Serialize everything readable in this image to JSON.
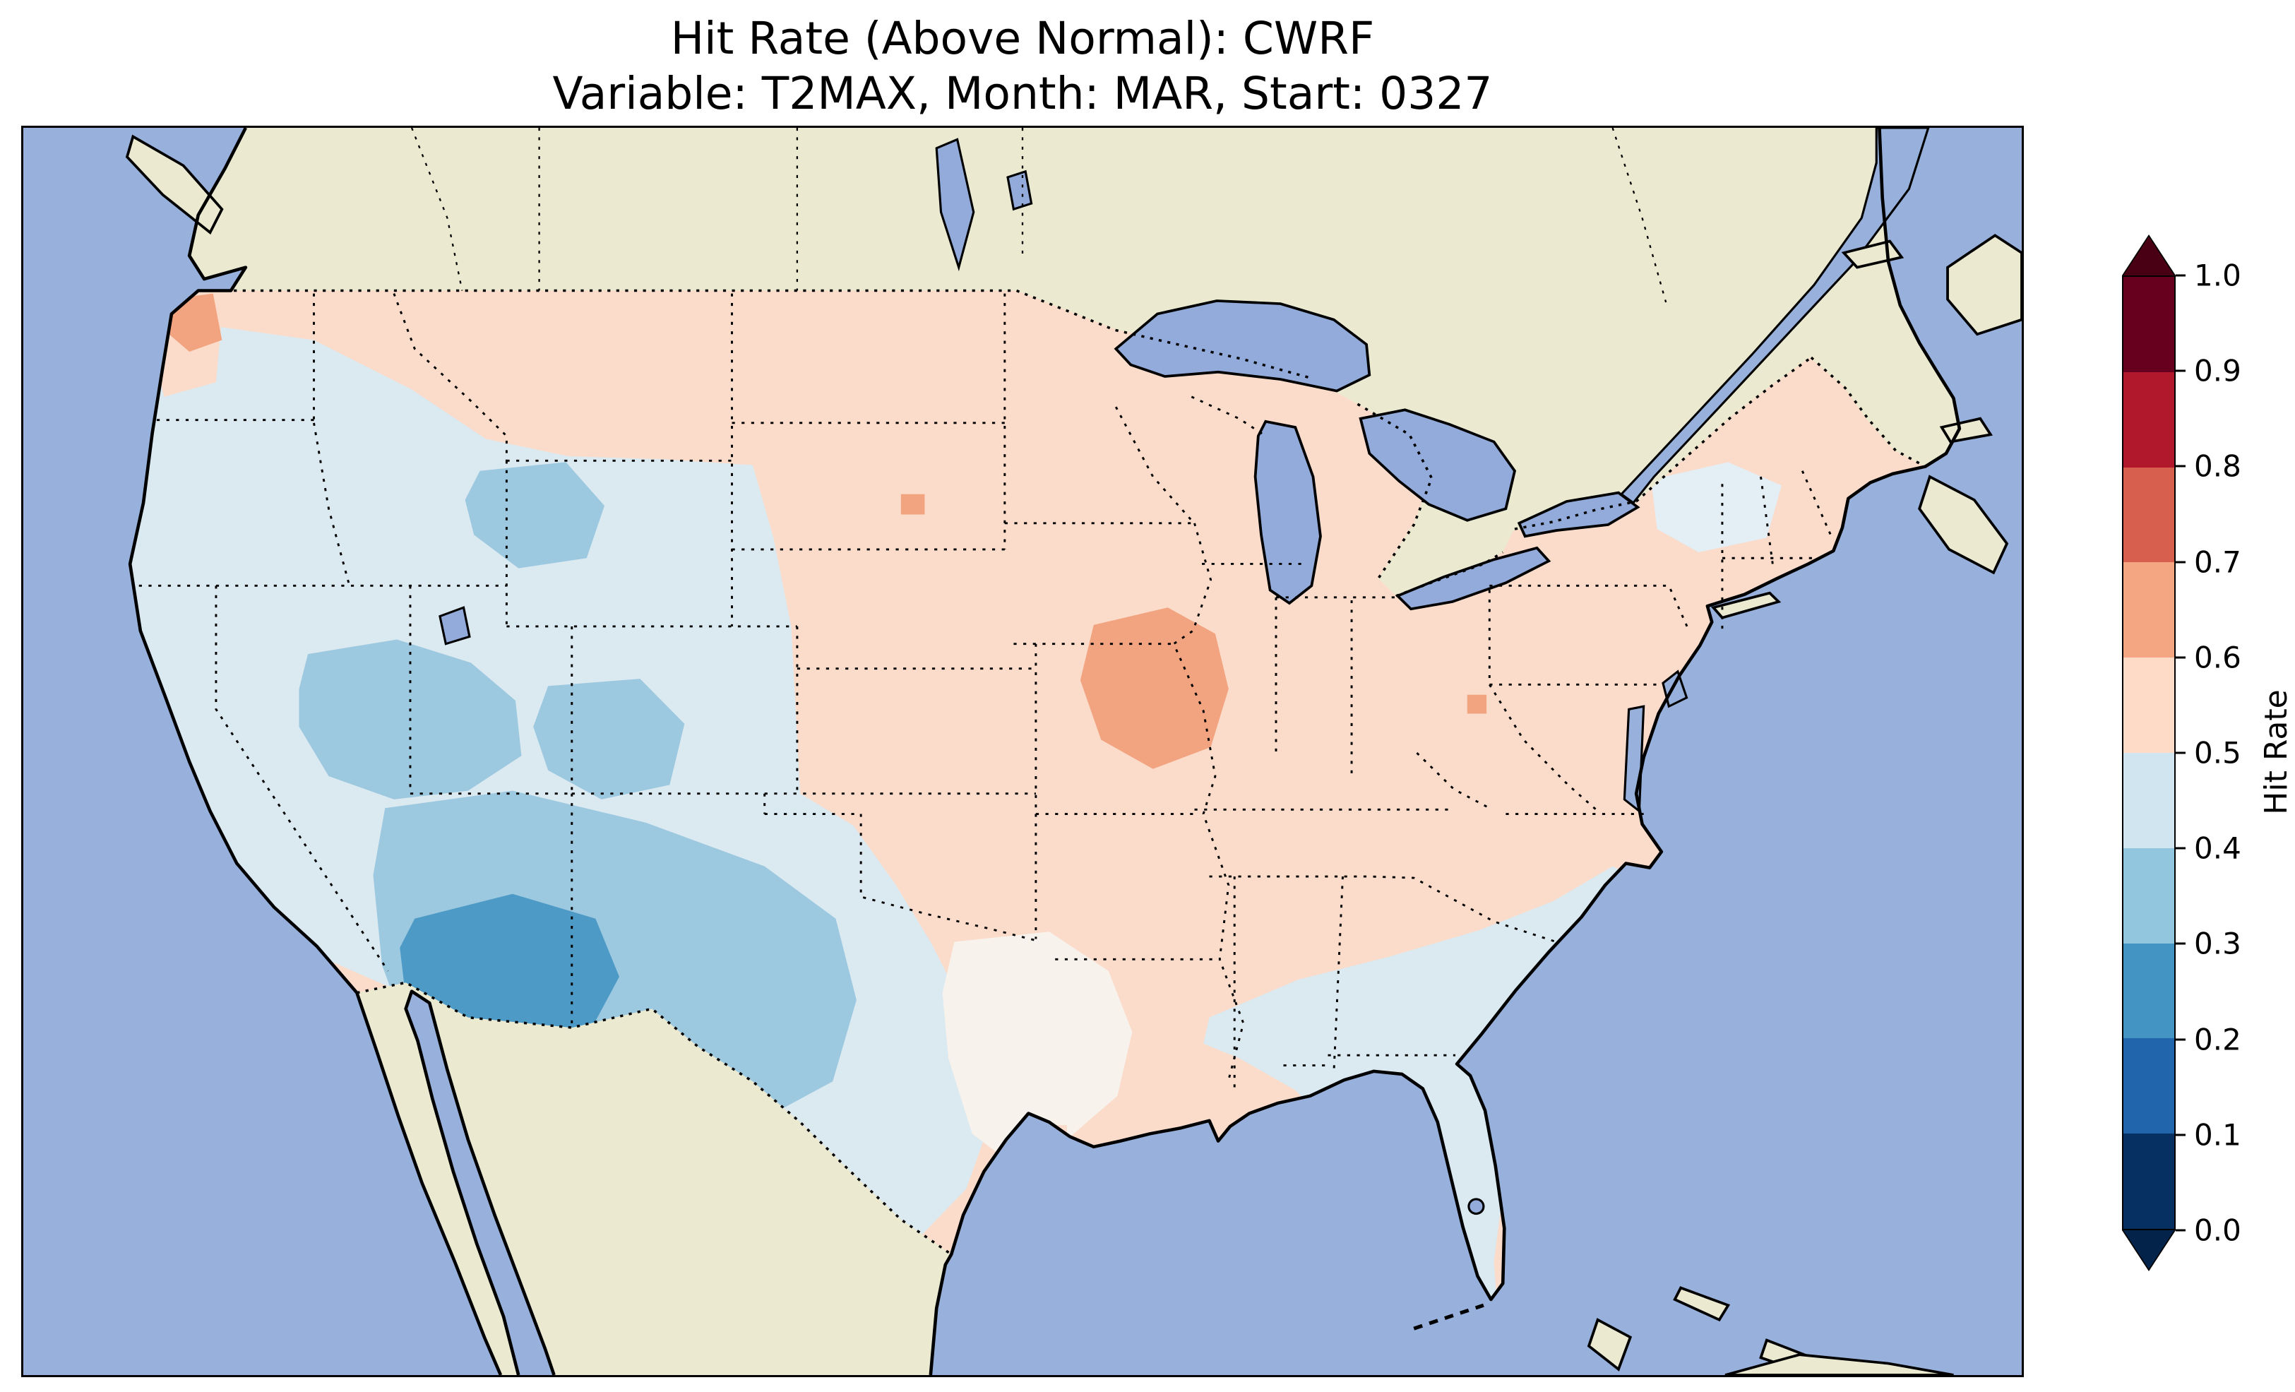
{
  "figure": {
    "title_line1": "Hit Rate (Above Normal): CWRF",
    "title_line2": "Variable: T2MAX, Month: MAR, Start: 0327"
  },
  "colorbar": {
    "label": "Hit Rate",
    "ticks_top_to_bottom": [
      "1.0",
      "0.9",
      "0.8",
      "0.7",
      "0.6",
      "0.5",
      "0.4",
      "0.3",
      "0.2",
      "0.1",
      "0.0"
    ],
    "segments_top_to_bottom": [
      "#67001f",
      "#b2182b",
      "#d6604d",
      "#f4a582",
      "#fddbc7",
      "#d1e5f0",
      "#92c5de",
      "#4393c3",
      "#2166ac",
      "#053061"
    ],
    "extend_over_color": "#4a0014",
    "extend_under_color": "#03234a"
  },
  "palette": {
    "ocean": "#98b1dc",
    "land": "#ebead1",
    "lake": "#92abdb",
    "hr_50_60": "#fbdcca",
    "hr_60_70": "#f2a480",
    "hr_40_50": "#dbe9f1",
    "hr_30_40": "#9cc8e0",
    "hr_20_30": "#4d9ac6",
    "hr_near_50": "#f7f2ec",
    "hr_ne_pale": "#e4eef5"
  },
  "chart_data": {
    "type": "heatmap",
    "title": "Hit Rate (Above Normal): CWRF",
    "subtitle": "Variable: T2MAX, Month: MAR, Start: 0327",
    "model": "CWRF",
    "variable": "T2MAX",
    "month": "MAR",
    "start": "0327",
    "metric": "Hit Rate (Above Normal)",
    "colorbar_label": "Hit Rate",
    "value_range": [
      0.0,
      1.0
    ],
    "bin_width": 0.1,
    "colorbar_extend": "both",
    "legend_position": "right",
    "map_region": "Continental United States",
    "regions": [
      {
        "area": "Coastal Washington / Puget Sound spot",
        "hit_rate": 0.65
      },
      {
        "area": "Washington-Oregon interior and Pacific Northwest",
        "hit_rate": 0.45
      },
      {
        "area": "Northern band: Montana and North Dakota",
        "hit_rate": 0.55
      },
      {
        "area": "California / Great Basin / Intermountain West",
        "hit_rate": 0.45
      },
      {
        "area": "Nevada-Utah patch",
        "hit_rate": 0.35
      },
      {
        "area": "Northwest Wyoming (Yellowstone area)",
        "hit_rate": 0.35
      },
      {
        "area": "Central Colorado patch",
        "hit_rate": 0.35
      },
      {
        "area": "Arizona / New Mexico / West Texas broad region",
        "hit_rate": 0.35
      },
      {
        "area": "Southern Arizona - Southwest New Mexico core",
        "hit_rate": 0.25
      },
      {
        "area": "Central and South Texas",
        "hit_rate": 0.45
      },
      {
        "area": "East Texas / Louisiana / Mississippi transition",
        "hit_rate": 0.5
      },
      {
        "area": "Great Plains (South Dakota to Oklahoma)",
        "hit_rate": 0.55
      },
      {
        "area": "Midwest, Ohio Valley, Mid-Atlantic, Northeast",
        "hit_rate": 0.55
      },
      {
        "area": "Eastern Iowa / Northwest Illinois patch",
        "hit_rate": 0.65
      },
      {
        "area": "Small spot in eastern South Dakota",
        "hit_rate": 0.65
      },
      {
        "area": "Small spot in eastern Ohio",
        "hit_rate": 0.65
      },
      {
        "area": "Southeast (Alabama, Georgia, South Carolina, Florida)",
        "hit_rate": 0.45
      },
      {
        "area": "Upstate New York / northern New England patch",
        "hit_rate": 0.45
      }
    ]
  }
}
